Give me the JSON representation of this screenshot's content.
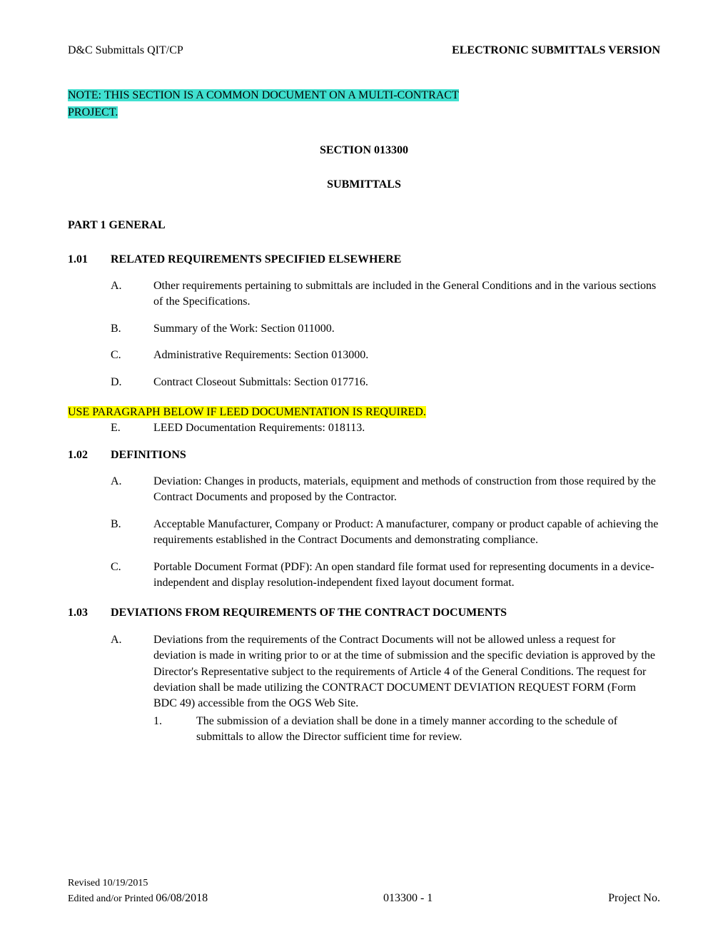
{
  "header": {
    "left": "D&C  Submittals QIT/CP",
    "right": "ELECTRONIC SUBMITTALS VERSION"
  },
  "note": {
    "line1": "NOTE:  THIS SECTION IS A COMMON DOCUMENT ON A MULTI-CONTRACT ",
    "line2": "PROJECT.   "
  },
  "section": {
    "title": "SECTION 013300",
    "subtitle": "SUBMITTALS"
  },
  "part": "PART 1   GENERAL",
  "sub101": {
    "num": "1.01",
    "title": "RELATED REQUIREMENTS SPECIFIED ELSEWHERE",
    "items": {
      "A": "Other requirements pertaining to submittals are included in the General Conditions and in the various sections of the Specifications.",
      "B": "Summary of the Work: Section 011000.",
      "C": "Administrative Requirements: Section 013000.",
      "D": "Contract Closeout Submittals: Section 017716."
    }
  },
  "yellow_note": "USE PARAGRAPH BELOW IF LEED DOCUMENTATION IS REQUIRED.",
  "item_E": {
    "letter": "E.",
    "text": "LEED Documentation Requirements:  018113."
  },
  "sub102": {
    "num": "1.02",
    "title": "DEFINITIONS",
    "items": {
      "A": "Deviation:  Changes in products, materials, equipment and methods of construction from those required by the Contract Documents and proposed by the Contractor.",
      "B": "Acceptable Manufacturer, Company or Product: A manufacturer, company or product capable of achieving the requirements established in the Contract Documents and demonstrating compliance.",
      "C": "Portable Document Format (PDF): An open standard file format used for representing documents in a device-independent and display resolution-independent fixed layout document format."
    }
  },
  "sub103": {
    "num": "1.03",
    "title": "DEVIATIONS FROM REQUIREMENTS OF THE CONTRACT DOCUMENTS",
    "items": {
      "A": "Deviations from the requirements of the Contract Documents will not be allowed unless a request for deviation is made in writing prior to or at the time of submission and the specific deviation is approved by the Director's Representative subject to the requirements of Article 4 of the General Conditions. The request for deviation shall be made utilizing the CONTRACT DOCUMENT DEVIATION REQUEST FORM (Form BDC 49) accessible from the OGS Web Site."
    },
    "subitem": {
      "num": "1.",
      "text": "The submission of a deviation shall be done in a timely manner according to the schedule of submittals to allow the Director sufficient time for review."
    }
  },
  "footer": {
    "revised": "Revised 10/19/2015",
    "edited_label": "Edited and/or Printed ",
    "edited_date": "06/08/2018",
    "center": "013300 - 1",
    "right": "Project No."
  },
  "letters": {
    "A": "A.",
    "B": "B.",
    "C": "C.",
    "D": "D."
  }
}
